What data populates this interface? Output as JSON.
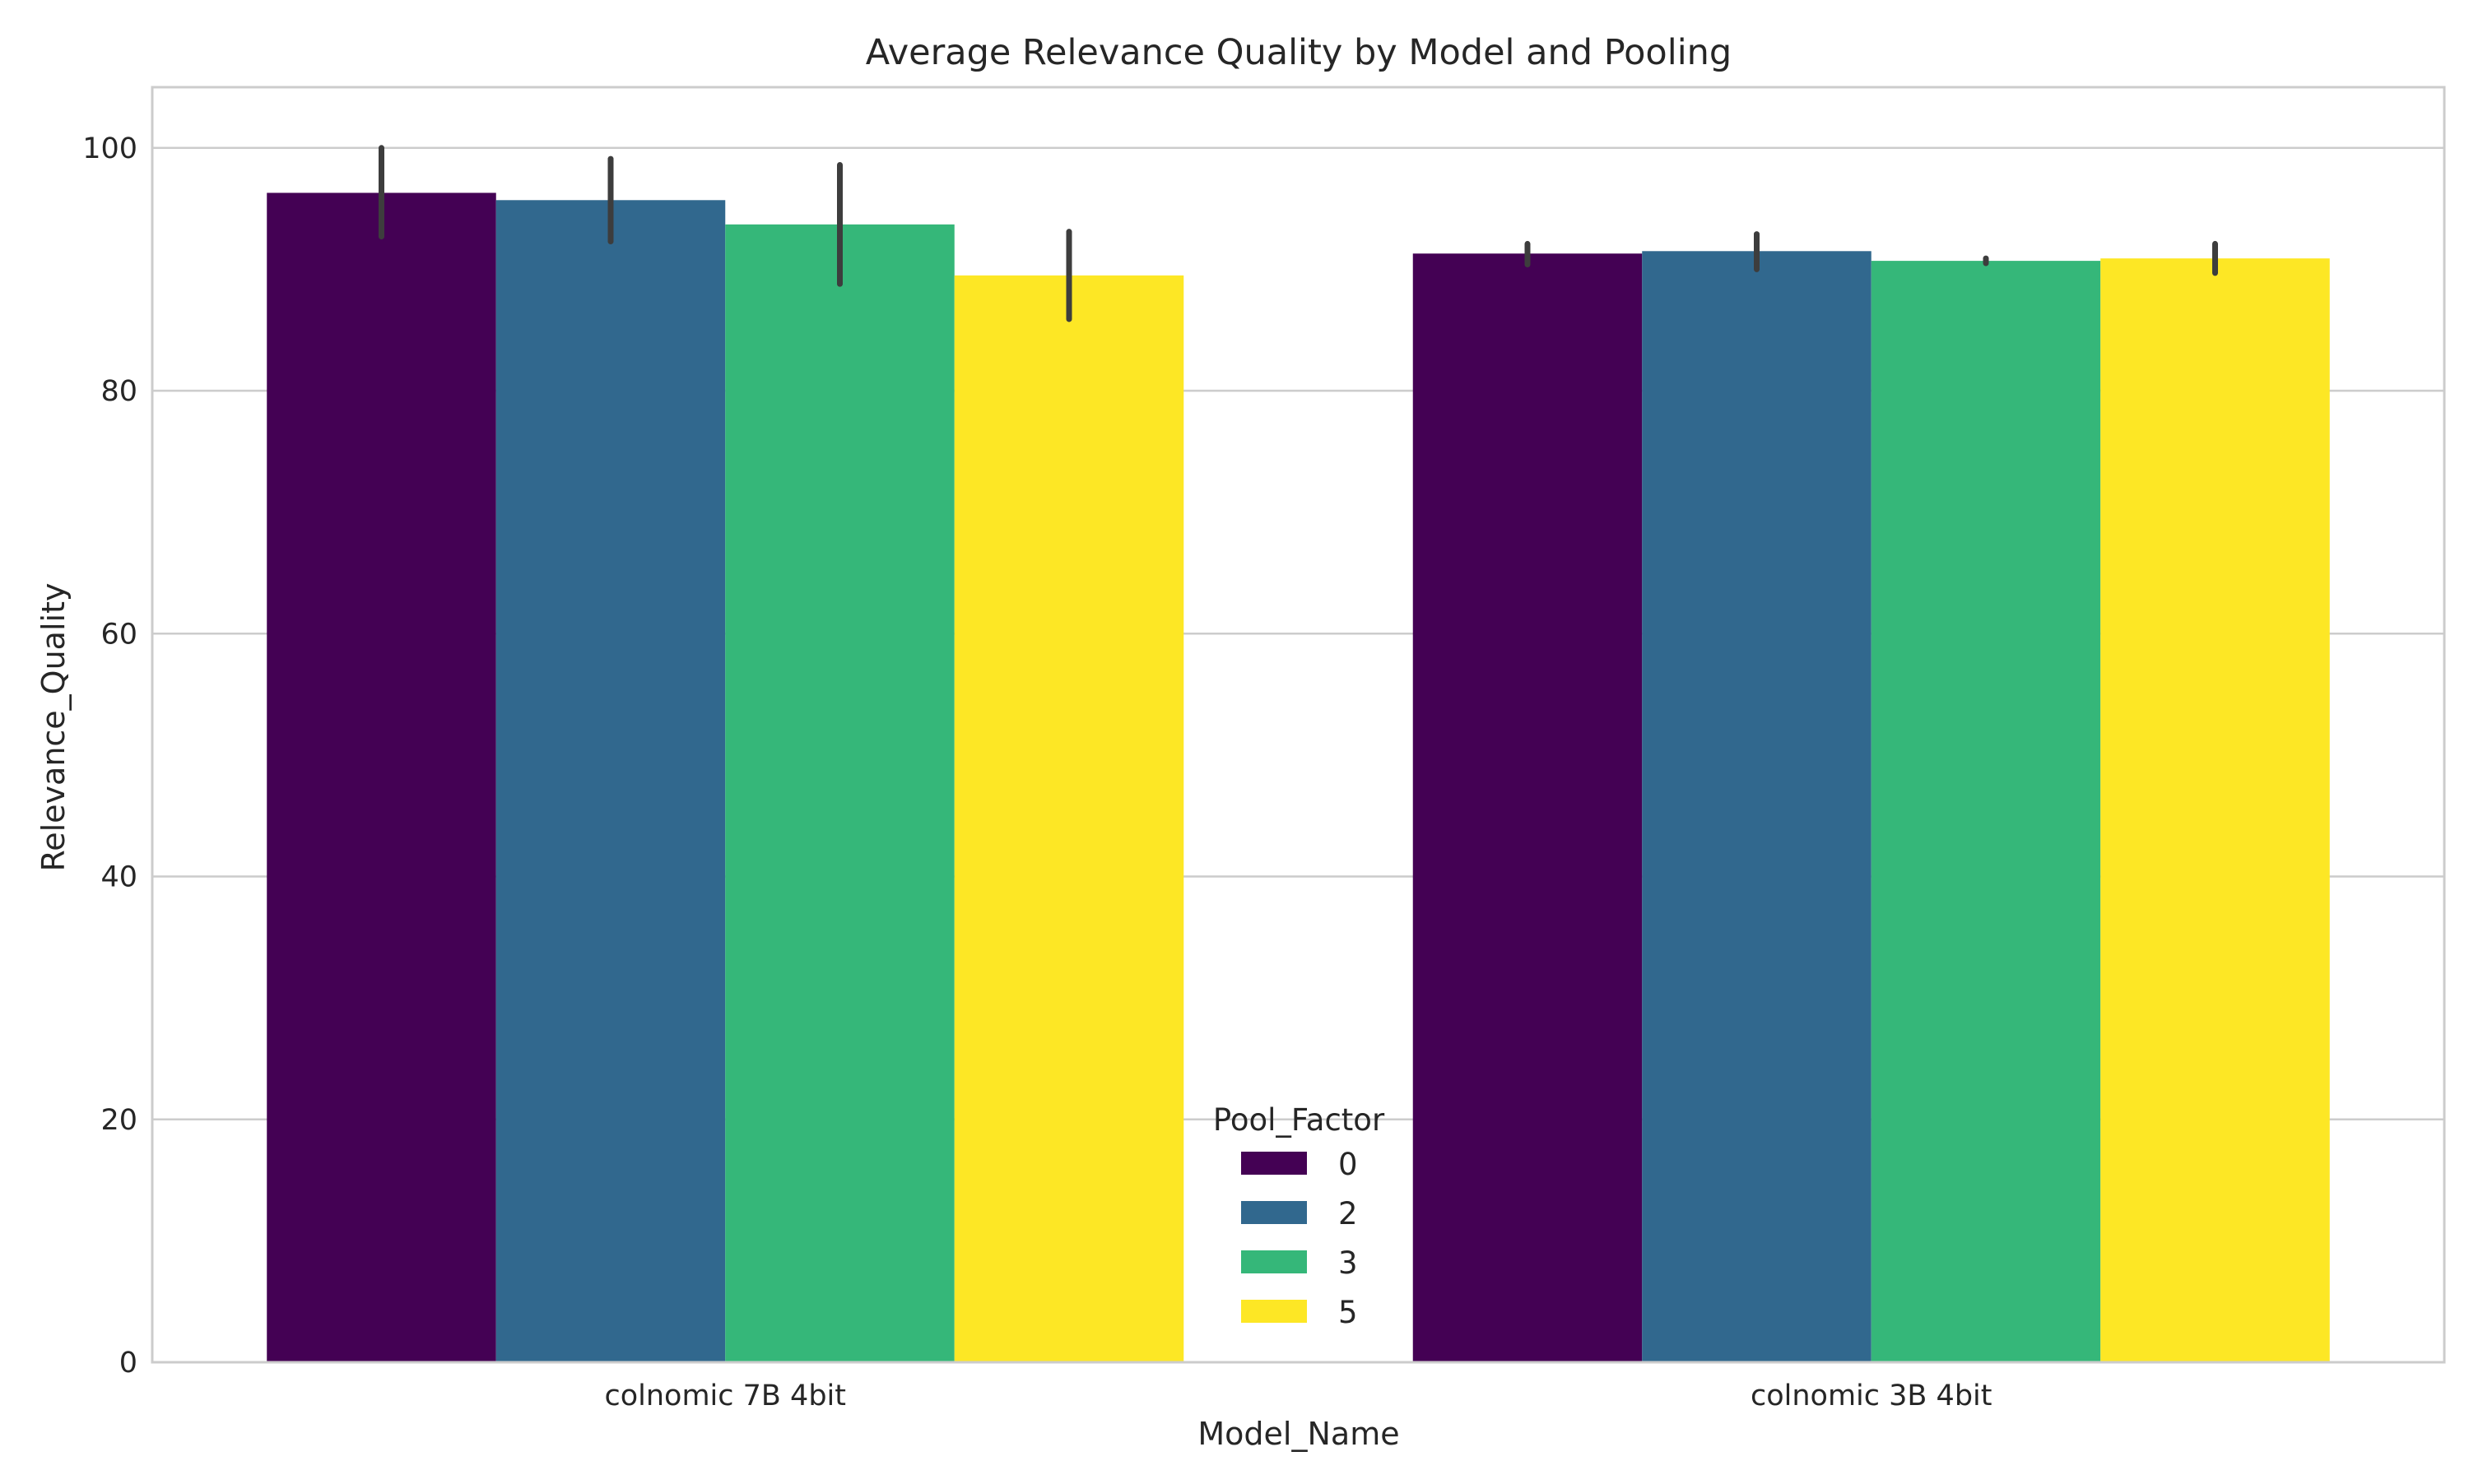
{
  "chart_data": {
    "type": "bar",
    "title": "Average Relevance Quality by Model and Pooling",
    "xlabel": "Model_Name",
    "ylabel": "Relevance_Quality",
    "categories": [
      "colnomic 7B 4bit",
      "colnomic 3B 4bit"
    ],
    "ylim": [
      0,
      105
    ],
    "yticks": [
      0,
      20,
      40,
      60,
      80,
      100
    ],
    "grid": true,
    "legend": {
      "title": "Pool_Factor",
      "placement": "lower-center"
    },
    "series": [
      {
        "name": "0",
        "color": "#440154",
        "values": [
          96.3,
          91.3
        ],
        "error_low": [
          92.7,
          90.4
        ],
        "error_high": [
          100.0,
          92.1
        ]
      },
      {
        "name": "2",
        "color": "#31688e",
        "values": [
          95.7,
          91.5
        ],
        "error_low": [
          92.3,
          90.0
        ],
        "error_high": [
          99.1,
          92.9
        ]
      },
      {
        "name": "3",
        "color": "#35b779",
        "values": [
          93.7,
          90.7
        ],
        "error_low": [
          88.8,
          90.5
        ],
        "error_high": [
          98.6,
          90.9
        ]
      },
      {
        "name": "5",
        "color": "#fde725",
        "values": [
          89.5,
          90.9
        ],
        "error_low": [
          85.9,
          89.7
        ],
        "error_high": [
          93.1,
          92.1
        ]
      }
    ]
  }
}
